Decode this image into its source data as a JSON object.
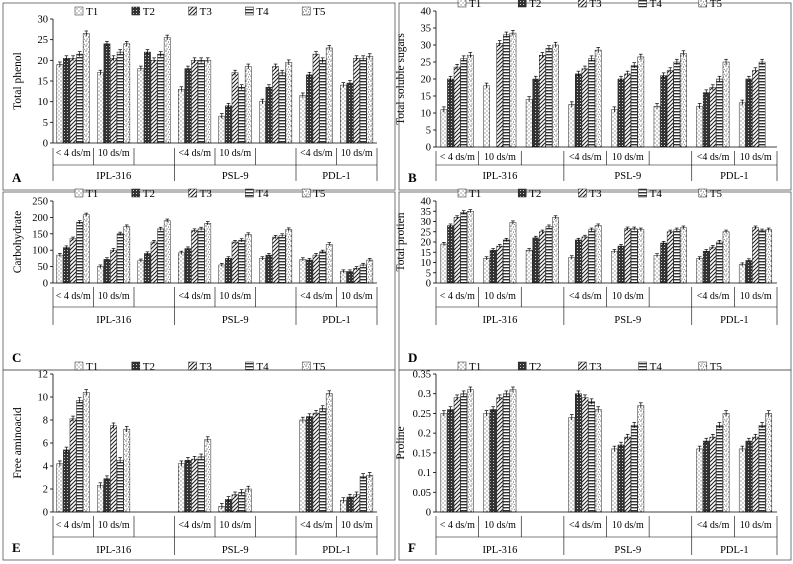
{
  "figure": {
    "panel_letters": [
      "A",
      "B",
      "C",
      "D",
      "E",
      "F"
    ]
  },
  "chart_data": [
    {
      "type": "bar",
      "panel": "A",
      "ylabel": "Total phenol",
      "ylim": [
        0,
        30
      ],
      "yticks": [
        0,
        5,
        10,
        15,
        20,
        25,
        30
      ],
      "legend": [
        "T1",
        "T2",
        "T3",
        "T4",
        "T5"
      ],
      "categories": [
        "< 4 ds/m",
        "10 ds/m",
        "",
        "<4 ds/m",
        "10 ds/m",
        "",
        "<4 ds/m",
        "10 ds/m"
      ],
      "groups": [
        {
          "label": "IPL-316",
          "span": 3
        },
        {
          "label": "PSL-9",
          "span": 3
        },
        {
          "label": "PDL-1",
          "span": 2
        }
      ],
      "series": [
        {
          "name": "T1",
          "values": [
            19,
            17,
            18,
            13,
            6.5,
            10,
            11.5,
            14
          ]
        },
        {
          "name": "T2",
          "values": [
            20.5,
            24,
            22,
            18,
            9,
            13.5,
            16.5,
            14.5
          ]
        },
        {
          "name": "T3",
          "values": [
            20.5,
            20.5,
            20,
            20,
            17,
            18.5,
            21.5,
            20.5
          ]
        },
        {
          "name": "T4",
          "values": [
            21.5,
            22,
            21.5,
            20,
            13.5,
            17,
            20,
            20.5
          ]
        },
        {
          "name": "T5",
          "values": [
            26.5,
            24,
            25.5,
            20,
            18.5,
            19.5,
            23,
            21
          ]
        }
      ]
    },
    {
      "type": "bar",
      "panel": "B",
      "ylabel": "Total soluble sugars",
      "ylim": [
        0,
        40
      ],
      "yticks": [
        0,
        5,
        10,
        15,
        20,
        25,
        30,
        35,
        40
      ],
      "legend": [
        "T1",
        "T2",
        "T3",
        "T4",
        "T5"
      ],
      "categories": [
        "< 4 ds/m",
        "10 ds/m",
        "",
        "<4 ds/m",
        "10 ds/m",
        "",
        "<4 ds/m",
        "10 ds/m"
      ],
      "groups": [
        {
          "label": "IPL-316",
          "span": 3
        },
        {
          "label": "PSL-9",
          "span": 3
        },
        {
          "label": "PDL-1",
          "span": 2
        }
      ],
      "series": [
        {
          "name": "T1",
          "values": [
            11,
            18,
            14,
            12.5,
            11,
            12,
            12,
            13
          ]
        },
        {
          "name": "T2",
          "values": [
            20,
            null,
            20,
            21.5,
            20,
            21,
            16,
            20
          ]
        },
        {
          "name": "T3",
          "values": [
            23.5,
            30.5,
            27,
            23,
            21.5,
            22.5,
            17.5,
            22.5
          ]
        },
        {
          "name": "T4",
          "values": [
            26,
            33,
            29,
            26,
            24,
            25,
            20,
            25
          ]
        },
        {
          "name": "T5",
          "values": [
            27,
            33.5,
            30,
            28.5,
            26.5,
            27.5,
            25,
            null
          ]
        }
      ]
    },
    {
      "type": "bar",
      "panel": "C",
      "ylabel": "Carbohydrate",
      "ylim": [
        0,
        250
      ],
      "yticks": [
        0,
        50,
        100,
        150,
        200,
        250
      ],
      "legend": [
        "T1",
        "T2",
        "T3",
        "T4",
        "T5"
      ],
      "categories": [
        "< 4 ds/m",
        "10 ds/m",
        "",
        "<4 ds/m",
        "10 ds/m",
        "",
        "<4 ds/m",
        "10 ds/m"
      ],
      "groups": [
        {
          "label": "IPL-316",
          "span": 3
        },
        {
          "label": "PSL-9",
          "span": 3
        },
        {
          "label": "PDL-1",
          "span": 2
        }
      ],
      "series": [
        {
          "name": "T1",
          "values": [
            85,
            50,
            68,
            92,
            55,
            75,
            72,
            35
          ]
        },
        {
          "name": "T2",
          "values": [
            108,
            72,
            90,
            105,
            75,
            85,
            70,
            35
          ]
        },
        {
          "name": "T3",
          "values": [
            135,
            100,
            125,
            160,
            125,
            140,
            85,
            45
          ]
        },
        {
          "name": "T4",
          "values": [
            185,
            150,
            165,
            165,
            130,
            145,
            95,
            55
          ]
        },
        {
          "name": "T5",
          "values": [
            208,
            172,
            190,
            182,
            148,
            163,
            118,
            70
          ]
        }
      ]
    },
    {
      "type": "bar",
      "panel": "D",
      "ylabel": "Total protien",
      "ylim": [
        0,
        40
      ],
      "yticks": [
        0,
        5,
        10,
        15,
        20,
        25,
        30,
        35,
        40
      ],
      "legend": [
        "T1",
        "T2",
        "T3",
        "T4",
        "T5"
      ],
      "categories": [
        "< 4 ds/m",
        "10 ds/m",
        "",
        "<4 ds/m",
        "10 ds/m",
        "",
        "<4 ds/m",
        "10 ds/m"
      ],
      "groups": [
        {
          "label": "IPL-316",
          "span": 3
        },
        {
          "label": "PSL-9",
          "span": 3
        },
        {
          "label": "PDL-1",
          "span": 2
        }
      ],
      "series": [
        {
          "name": "T1",
          "values": [
            19,
            12,
            16,
            12.5,
            15.5,
            13.5,
            12,
            9
          ]
        },
        {
          "name": "T2",
          "values": [
            28,
            16,
            22,
            21,
            18,
            19.5,
            15.5,
            11
          ]
        },
        {
          "name": "T3",
          "values": [
            32,
            18,
            25,
            22.5,
            26.5,
            25,
            17.5,
            27
          ]
        },
        {
          "name": "T4",
          "values": [
            34.5,
            21,
            27.5,
            26,
            26.5,
            26,
            20,
            25.5
          ]
        },
        {
          "name": "T5",
          "values": [
            35,
            29.5,
            32,
            28,
            26,
            27,
            25,
            26
          ]
        }
      ]
    },
    {
      "type": "bar",
      "panel": "E",
      "ylabel": "Free aminoacid",
      "ylim": [
        0,
        12
      ],
      "yticks": [
        0,
        2,
        4,
        6,
        8,
        10,
        12
      ],
      "legend": [
        "T1",
        "T2",
        "T3",
        "T4",
        "T5"
      ],
      "categories": [
        "< 4 ds/m",
        "10 ds/m",
        "",
        "<4 ds/m",
        "10 ds/m",
        "",
        "<4 ds/m",
        "10 ds/m"
      ],
      "groups": [
        {
          "label": "IPL-316",
          "span": 3
        },
        {
          "label": "PSL-9",
          "span": 3
        },
        {
          "label": "PDL-1",
          "span": 2
        }
      ],
      "series": [
        {
          "name": "T1",
          "values": [
            4.2,
            2.3,
            null,
            4.2,
            0.5,
            null,
            8.0,
            1.0
          ]
        },
        {
          "name": "T2",
          "values": [
            5.4,
            2.9,
            null,
            4.5,
            1.1,
            null,
            8.3,
            1.3
          ]
        },
        {
          "name": "T3",
          "values": [
            8.1,
            7.5,
            null,
            4.6,
            1.5,
            null,
            8.6,
            1.5
          ]
        },
        {
          "name": "T4",
          "values": [
            9.7,
            4.5,
            null,
            4.8,
            1.7,
            null,
            9.0,
            3.1
          ]
        },
        {
          "name": "T5",
          "values": [
            10.4,
            7.2,
            null,
            6.3,
            2.0,
            null,
            10.3,
            3.2
          ]
        }
      ]
    },
    {
      "type": "bar",
      "panel": "F",
      "ylabel": "Proline",
      "ylim": [
        0,
        0.35
      ],
      "yticks": [
        0,
        0.05,
        0.1,
        0.15,
        0.2,
        0.25,
        0.3,
        0.35
      ],
      "legend": [
        "T1",
        "T2",
        "T3",
        "T4",
        "T5"
      ],
      "categories": [
        "< 4 ds/m",
        "10 ds/m",
        "",
        "<4 ds/m",
        "10 ds/m",
        "",
        "<4 ds/m",
        "10 ds/m"
      ],
      "groups": [
        {
          "label": "IPL-316",
          "span": 3
        },
        {
          "label": "PSL-9",
          "span": 3
        },
        {
          "label": "PDL-1",
          "span": 2
        }
      ],
      "series": [
        {
          "name": "T1",
          "values": [
            0.25,
            0.25,
            null,
            0.24,
            0.16,
            null,
            0.16,
            0.16
          ]
        },
        {
          "name": "T2",
          "values": [
            0.26,
            0.26,
            null,
            0.3,
            0.17,
            null,
            0.18,
            0.18
          ]
        },
        {
          "name": "T3",
          "values": [
            0.29,
            0.29,
            null,
            0.29,
            0.19,
            null,
            0.19,
            0.19
          ]
        },
        {
          "name": "T4",
          "values": [
            0.3,
            0.3,
            null,
            0.28,
            0.22,
            null,
            0.22,
            0.22
          ]
        },
        {
          "name": "T5",
          "values": [
            0.31,
            0.31,
            null,
            0.26,
            0.27,
            null,
            0.25,
            0.25
          ]
        }
      ]
    }
  ]
}
